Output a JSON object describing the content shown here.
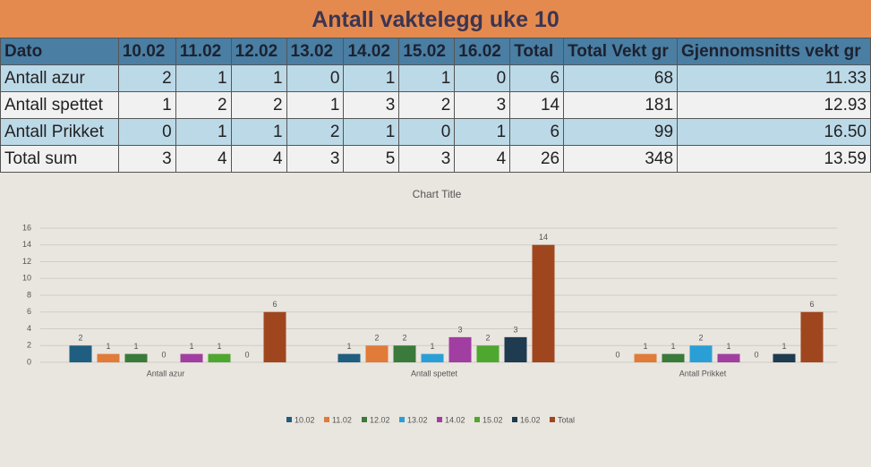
{
  "title": "Antall vaktelegg uke 10",
  "table": {
    "columns": [
      "Dato",
      "10.02",
      "11.02",
      "12.02",
      "13.02",
      "14.02",
      "15.02",
      "16.02",
      "Total",
      "Total Vekt gr",
      "Gjennomsnitts vekt gr"
    ],
    "rows": [
      [
        "Antall azur",
        "2",
        "1",
        "1",
        "0",
        "1",
        "1",
        "0",
        "6",
        "68",
        "11.33"
      ],
      [
        "Antall spettet",
        "1",
        "2",
        "2",
        "1",
        "3",
        "2",
        "3",
        "14",
        "181",
        "12.93"
      ],
      [
        "Antall Prikket",
        "0",
        "1",
        "1",
        "2",
        "1",
        "0",
        "1",
        "6",
        "99",
        "16.50"
      ],
      [
        "Total sum",
        "3",
        "4",
        "4",
        "3",
        "5",
        "3",
        "4",
        "26",
        "348",
        "13.59"
      ]
    ]
  },
  "chart_data": {
    "type": "bar",
    "title": "Chart Title",
    "categories": [
      "Antall azur",
      "Antall spettet",
      "Antall Prikket"
    ],
    "series": [
      {
        "name": "10.02",
        "color": "#1f5e80",
        "values": [
          2,
          1,
          0
        ]
      },
      {
        "name": "11.02",
        "color": "#e07b39",
        "values": [
          1,
          2,
          1
        ]
      },
      {
        "name": "12.02",
        "color": "#3a7a3a",
        "values": [
          1,
          2,
          1
        ]
      },
      {
        "name": "13.02",
        "color": "#2a9fd6",
        "values": [
          0,
          1,
          2
        ]
      },
      {
        "name": "14.02",
        "color": "#a13ea1",
        "values": [
          1,
          3,
          1
        ]
      },
      {
        "name": "15.02",
        "color": "#4ea72e",
        "values": [
          1,
          2,
          0
        ]
      },
      {
        "name": "16.02",
        "color": "#1e3b4f",
        "values": [
          0,
          3,
          1
        ]
      },
      {
        "name": "Total",
        "color": "#a0461e",
        "values": [
          6,
          14,
          6
        ]
      }
    ],
    "ylim": [
      0,
      16
    ],
    "yticks": [
      0,
      2,
      4,
      6,
      8,
      10,
      12,
      14,
      16
    ],
    "grid": true
  }
}
